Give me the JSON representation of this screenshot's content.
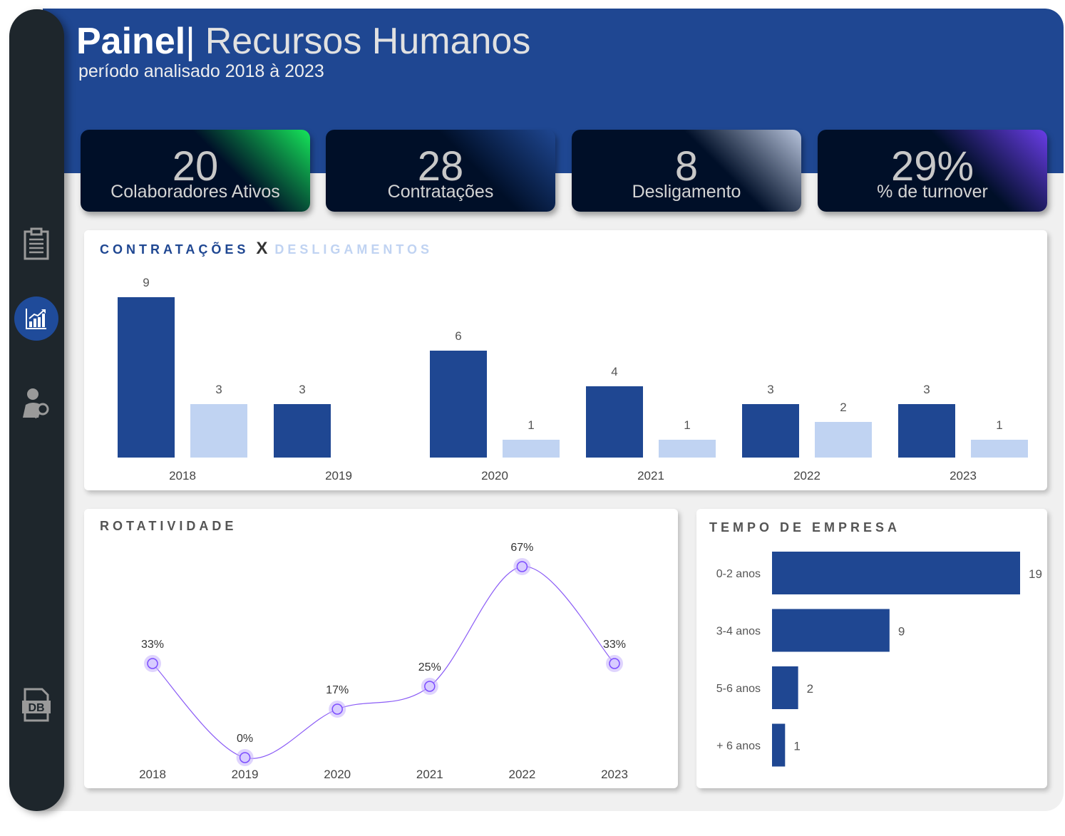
{
  "header": {
    "title_bold": "Painel",
    "separator": "|",
    "title_light": "Recursos Humanos",
    "subtitle": "período analisado 2018 à 2023"
  },
  "sidebar": {
    "items": [
      {
        "icon": "clipboard-icon"
      },
      {
        "icon": "chart-icon",
        "active": true
      },
      {
        "icon": "user-search-icon"
      },
      {
        "icon": "database-file-icon",
        "label": "DB"
      }
    ]
  },
  "kpis": [
    {
      "value": "20",
      "label": "Colaboradores  Ativos",
      "accent": "#16e65a"
    },
    {
      "value": "28",
      "label": "Contratações",
      "accent": "#1f4792"
    },
    {
      "value": "8",
      "label": "Desligamento",
      "accent": "#b8c4dc"
    },
    {
      "value": "29%",
      "label": "% de turnover",
      "accent": "#6a3de8"
    }
  ],
  "colors": {
    "hires": "#1f4792",
    "terminations": "#c0d3f2",
    "line": "#8b5cf6",
    "band": "#1f4792"
  },
  "chart_data": [
    {
      "type": "bar",
      "title_part1": "CONTRATAÇÕES",
      "title_x": "X",
      "title_part2": "DESLIGAMENTOS",
      "categories": [
        "2018",
        "2019",
        "2020",
        "2021",
        "2022",
        "2023"
      ],
      "series": [
        {
          "values": [
            9,
            3,
            6,
            4,
            3,
            3
          ]
        },
        {
          "values": [
            3,
            0,
            1,
            1,
            2,
            1
          ]
        }
      ],
      "ylim": [
        0,
        9
      ]
    },
    {
      "type": "line",
      "title": "ROTATIVIDADE",
      "categories": [
        "2018",
        "2019",
        "2020",
        "2021",
        "2022",
        "2023"
      ],
      "values": [
        33,
        0,
        17,
        25,
        67,
        33
      ],
      "labels": [
        "33%",
        "0%",
        "17%",
        "25%",
        "67%",
        "33%"
      ],
      "ylim": [
        0,
        100
      ]
    },
    {
      "type": "bar",
      "orientation": "horizontal",
      "title": "TEMPO DE EMPRESA",
      "categories": [
        "0-2 anos",
        "3-4 anos",
        "5-6 anos",
        "+ 6 anos"
      ],
      "values": [
        19,
        9,
        2,
        1
      ],
      "xlim": [
        0,
        19
      ]
    }
  ]
}
